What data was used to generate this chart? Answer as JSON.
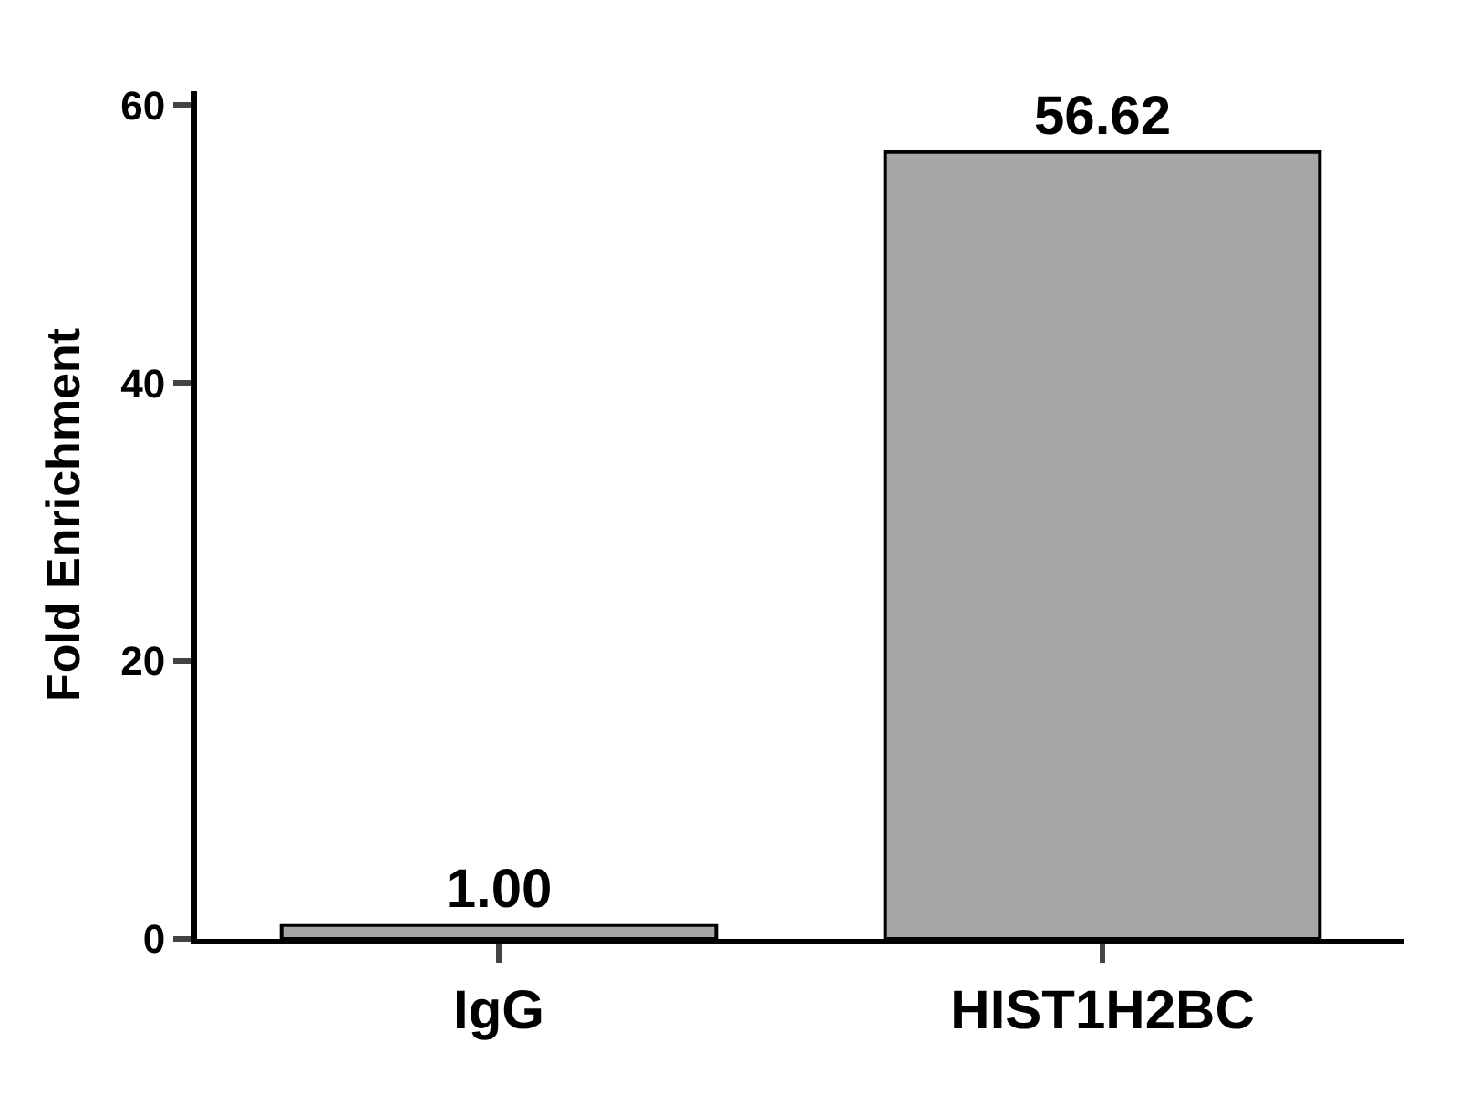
{
  "chart_data": {
    "type": "bar",
    "ylabel": "Fold Enrichment",
    "categories": [
      "IgG",
      "HIST1H2BC"
    ],
    "values": [
      1.0,
      56.62
    ],
    "value_labels": [
      "1.00",
      "56.62"
    ],
    "color": "#a6a6a6",
    "ylim": [
      0,
      61
    ],
    "yticks": [
      0,
      20,
      40,
      60
    ],
    "legend": false
  }
}
